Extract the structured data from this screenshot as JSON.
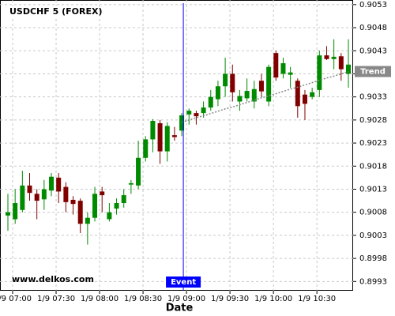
{
  "chart_data": {
    "type": "candlestick",
    "title": "USDCHF 5 (FOREX)",
    "watermark": "www.delkos.com",
    "x_label": "Date",
    "categories": [
      "1/9 07:00",
      null,
      null,
      null,
      null,
      null,
      "1/9 07:30",
      null,
      null,
      null,
      null,
      null,
      "1/9 08:00",
      null,
      null,
      null,
      null,
      null,
      "1/9 08:30",
      null,
      null,
      null,
      null,
      null,
      "1/9 09:00",
      null,
      null,
      null,
      null,
      null,
      "1/9 09:30",
      null,
      null,
      null,
      null,
      null,
      "1/9 10:00",
      null,
      null,
      null,
      null,
      null,
      "1/9 10:30",
      null,
      null,
      null,
      null,
      null
    ],
    "open": [
      0.90073,
      0.90065,
      0.90085,
      0.90138,
      0.9012,
      0.90108,
      0.90127,
      0.90155,
      0.90135,
      0.90107,
      0.90105,
      0.90055,
      0.90068,
      0.90125,
      0.90065,
      0.90088,
      0.901,
      0.9014,
      0.90138,
      0.90198,
      0.90238,
      0.90273,
      0.90212,
      0.90247,
      0.90257,
      0.90292,
      0.90295,
      0.90295,
      0.90307,
      0.90325,
      0.90353,
      0.9038,
      0.9032,
      0.90327,
      0.9032,
      0.90365,
      0.9032,
      0.90425,
      0.9038,
      0.90378,
      0.90365,
      0.90335,
      0.9033,
      0.90345,
      0.9042,
      0.90412,
      0.90418,
      0.9038
    ],
    "high": [
      0.9012,
      0.9013,
      0.9017,
      0.90165,
      0.9013,
      0.9015,
      0.90165,
      0.90165,
      0.90145,
      0.90115,
      0.9011,
      0.9008,
      0.90135,
      0.90135,
      0.901,
      0.9011,
      0.9013,
      0.9015,
      0.90235,
      0.90245,
      0.90282,
      0.9028,
      0.90275,
      0.90265,
      0.90295,
      0.90305,
      0.903,
      0.9032,
      0.90345,
      0.90365,
      0.90415,
      0.904,
      0.90345,
      0.9037,
      0.90365,
      0.9038,
      0.904,
      0.9043,
      0.90415,
      0.90395,
      0.9037,
      0.90345,
      0.9035,
      0.9043,
      0.9044,
      0.90455,
      0.90425,
      0.90455
    ],
    "low": [
      0.9004,
      0.90055,
      0.9008,
      0.90105,
      0.90065,
      0.90085,
      0.90115,
      0.901,
      0.9008,
      0.90075,
      0.90035,
      0.9001,
      0.9006,
      0.9008,
      0.9006,
      0.90075,
      0.9009,
      0.9012,
      0.9013,
      0.9019,
      0.9021,
      0.90185,
      0.9019,
      0.90235,
      0.90245,
      0.9027,
      0.9027,
      0.90285,
      0.903,
      0.9031,
      0.9033,
      0.9032,
      0.903,
      0.9032,
      0.90305,
      0.9033,
      0.9031,
      0.90365,
      0.9037,
      0.9035,
      0.90285,
      0.9028,
      0.90325,
      0.9033,
      0.9041,
      0.9039,
      0.90365,
      0.9035
    ],
    "close": [
      0.9008,
      0.901,
      0.90138,
      0.90122,
      0.90105,
      0.9013,
      0.90157,
      0.90125,
      0.90102,
      0.90098,
      0.90055,
      0.90068,
      0.9012,
      0.90117,
      0.9008,
      0.901,
      0.90117,
      0.90143,
      0.90198,
      0.90238,
      0.90278,
      0.90212,
      0.90267,
      0.90243,
      0.9029,
      0.903,
      0.90288,
      0.90307,
      0.9033,
      0.90353,
      0.9038,
      0.9034,
      0.90332,
      0.90343,
      0.90347,
      0.90342,
      0.90395,
      0.90372,
      0.90403,
      0.90383,
      0.9031,
      0.90315,
      0.9034,
      0.9042,
      0.90412,
      0.90417,
      0.9039,
      0.904
    ],
    "up_color": "#008a00",
    "down_color": "#800000",
    "trend": {
      "label": "Trend",
      "color": "#888888",
      "values": [
        null,
        null,
        null,
        null,
        null,
        null,
        null,
        null,
        null,
        null,
        null,
        null,
        null,
        null,
        null,
        null,
        null,
        null,
        null,
        null,
        null,
        null,
        null,
        null,
        0.90275,
        0.9028,
        0.90285,
        0.90289,
        0.90294,
        0.90299,
        0.90304,
        0.90308,
        0.90313,
        0.90318,
        0.90323,
        0.90328,
        0.90332,
        0.90337,
        0.90342,
        0.90347,
        0.90351,
        0.90356,
        0.90361,
        0.90366,
        0.90371,
        0.90375,
        0.9038,
        0.90385
      ]
    },
    "event": {
      "label": "Event",
      "at": "1/9 09:00",
      "color": "#0000ff"
    },
    "ylim": [
      0.8991,
      0.9054
    ],
    "yticks": [
      0.8993,
      0.8998,
      0.9003,
      0.9008,
      0.9013,
      0.9018,
      0.9023,
      0.9028,
      0.9033,
      0.9038,
      0.9043,
      0.9048,
      0.9053
    ],
    "grid": true
  }
}
